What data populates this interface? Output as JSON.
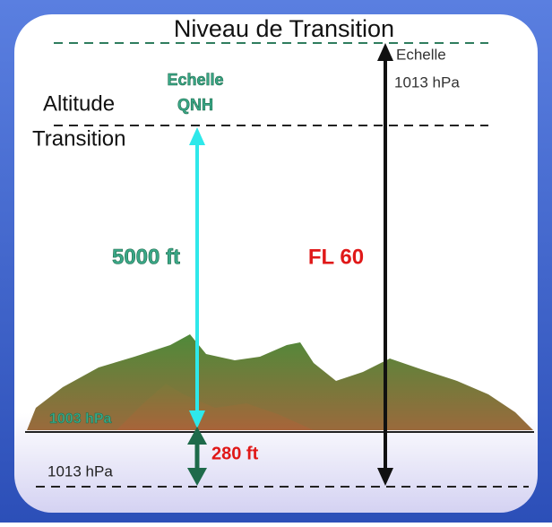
{
  "diagram": {
    "title": "Niveau de Transition",
    "scale_1013": {
      "line1": "Echelle",
      "line2": "1013 hPa"
    },
    "transition_altitude": {
      "line1": "Altitude",
      "line2": "Transition"
    },
    "scale_qnh": {
      "line1": "Echelle",
      "line2": "QNH"
    },
    "qnh_height": "5000 ft",
    "flight_level": "FL 60",
    "qnh_pressure": "1003 hPa",
    "offset": "280 ft",
    "std_pressure": "1013 hPa"
  }
}
